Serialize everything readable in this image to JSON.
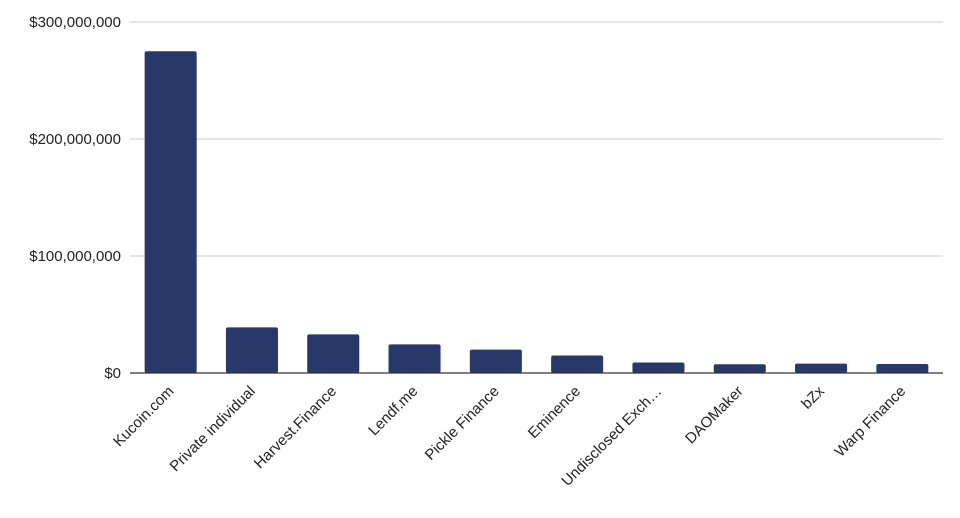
{
  "chart_data": {
    "type": "bar",
    "title": "",
    "xlabel": "",
    "ylabel": "",
    "categories": [
      "Kucoin.com",
      "Private individual",
      "Harvest.Finance",
      "Lendf.me",
      "Pickle Finance",
      "Eminence",
      "Undisclosed Exch…",
      "DAOMaker",
      "bZx",
      "Warp Finance"
    ],
    "values": [
      275000000,
      39000000,
      33000000,
      24500000,
      20000000,
      15000000,
      9000000,
      7500000,
      8000000,
      7700000
    ],
    "ylim": [
      0,
      300000000
    ],
    "yticks": [
      0,
      100000000,
      200000000,
      300000000
    ],
    "ytick_labels": [
      "$0",
      "$100,000,000",
      "$200,000,000",
      "$300,000,000"
    ],
    "bar_color": "#283868",
    "grid": true,
    "legend": "none"
  }
}
